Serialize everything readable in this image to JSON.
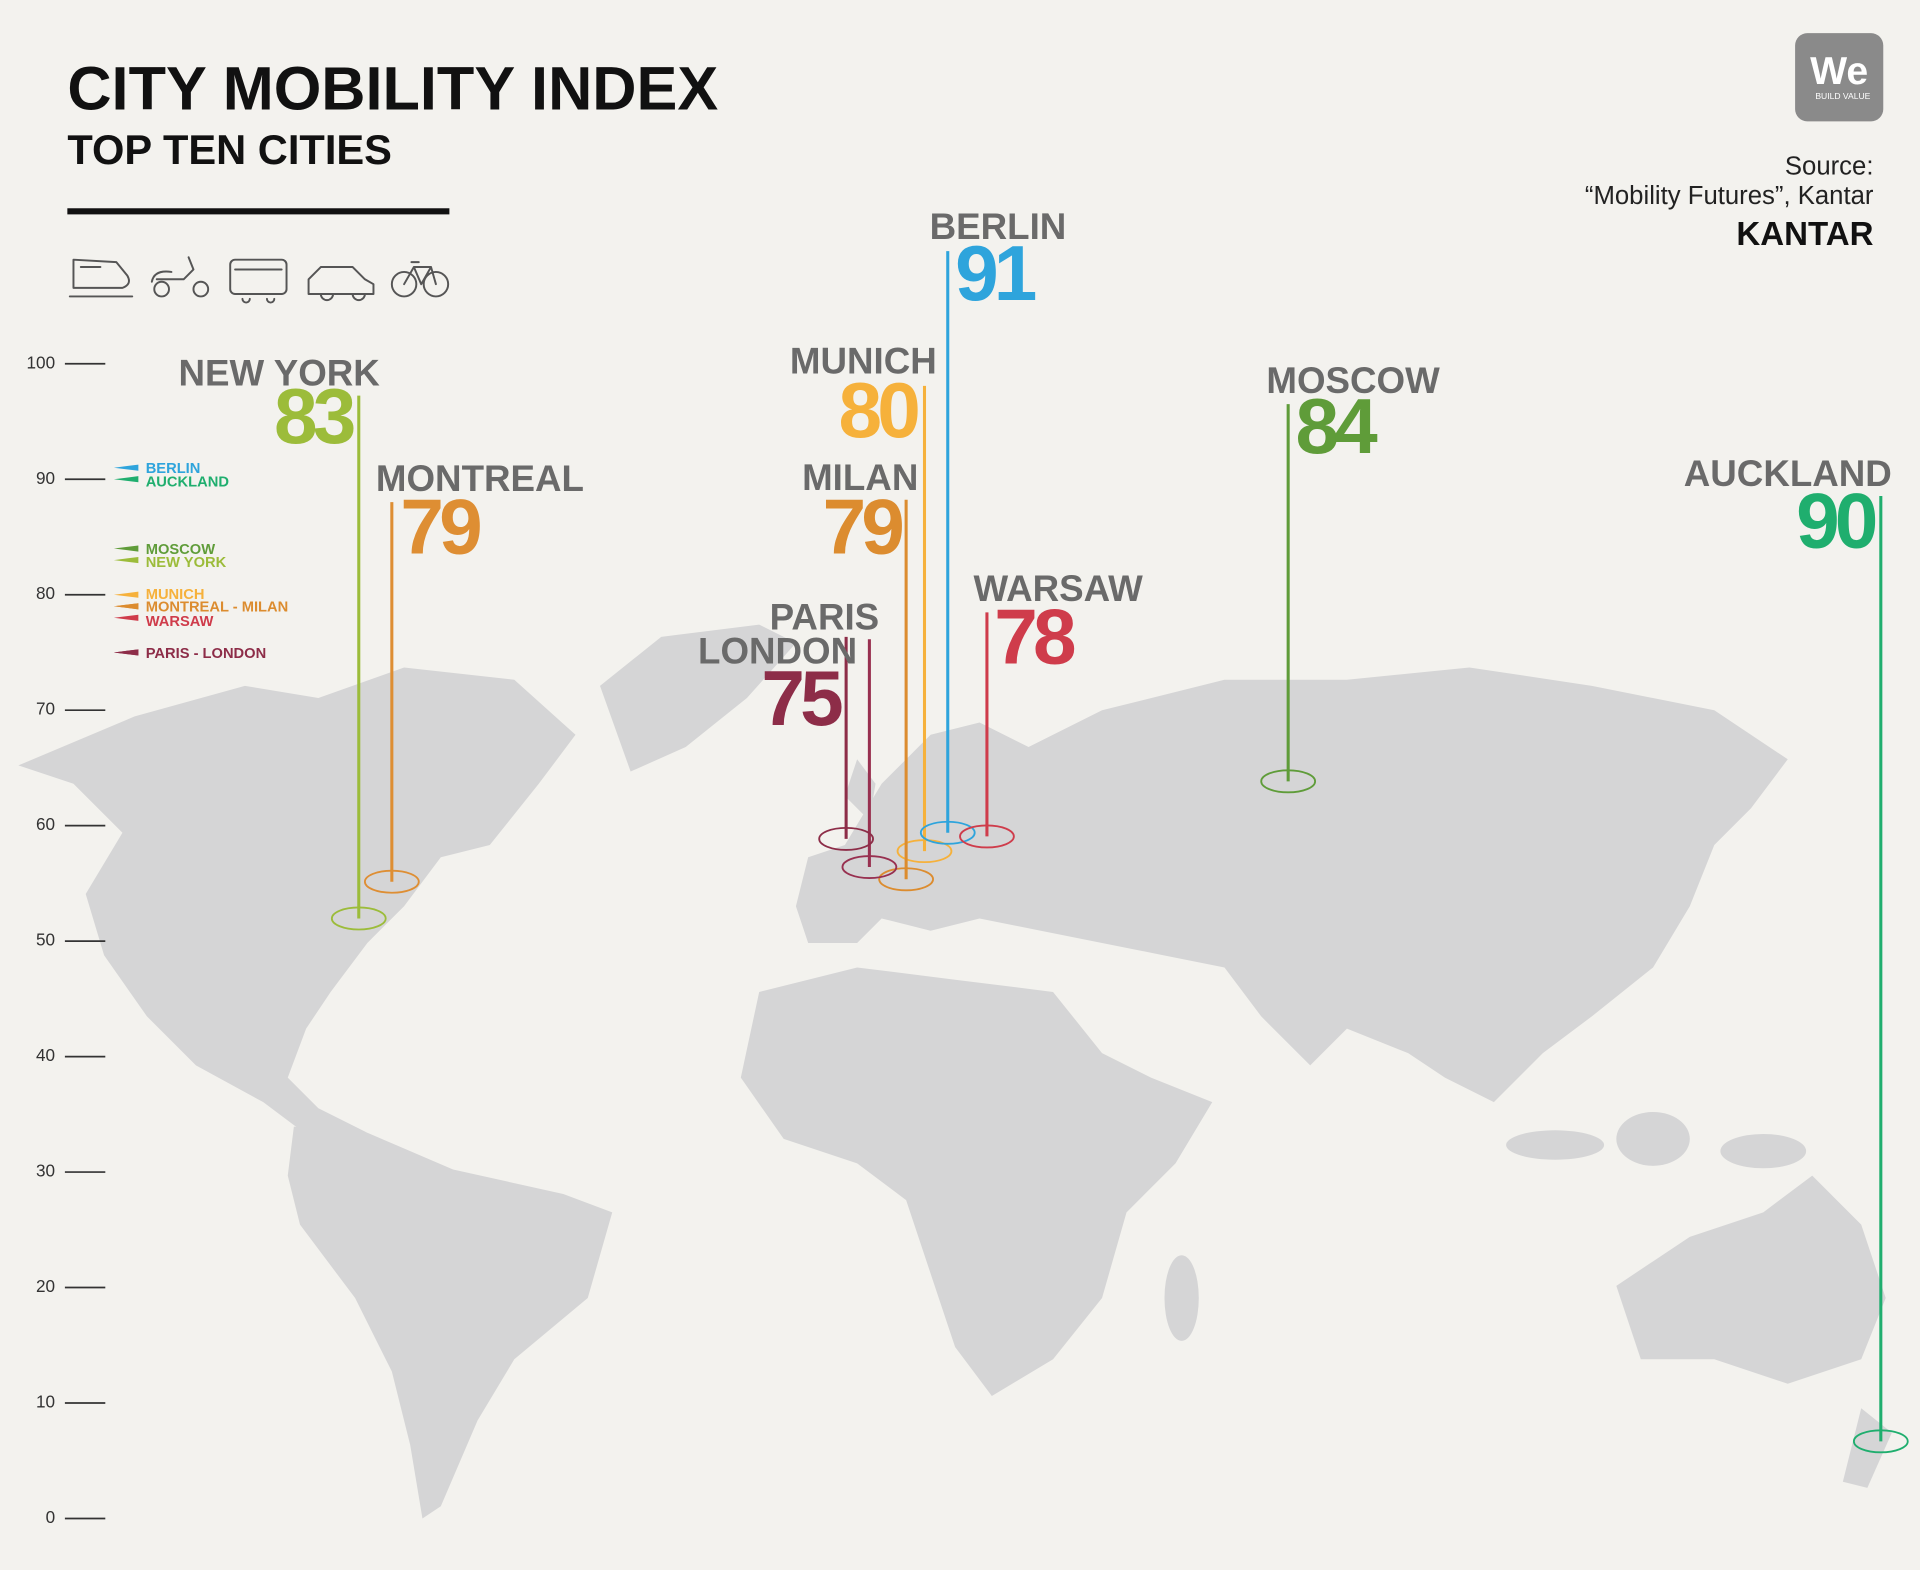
{
  "chart_data": {
    "type": "pin",
    "title": "CITY MOBILITY INDEX",
    "subtitle": "TOP TEN CITIES",
    "source_label": "Source:",
    "source": "“Mobility Futures”, Kantar",
    "brand": "KANTAR",
    "logo": "We",
    "logo_tagline": "BUILD VALUE",
    "ylim": [
      0,
      100
    ],
    "yticks": [
      0,
      10,
      20,
      30,
      40,
      50,
      60,
      70,
      80,
      90,
      100
    ],
    "axis_labels": [
      "BERLIN",
      "AUCKLAND",
      "MOSCOW",
      "NEW YORK",
      "MUNICH",
      "MONTREAL - MILAN",
      "WARSAW",
      "PARIS - LONDON"
    ],
    "cities": [
      {
        "name": "NEW YORK",
        "value": 83,
        "color": "#9cbc3a"
      },
      {
        "name": "MONTREAL",
        "value": 79,
        "color": "#de8e33"
      },
      {
        "name": "MUNICH",
        "value": 80,
        "color": "#f6b13b"
      },
      {
        "name": "MILAN",
        "value": 79,
        "color": "#dc8c2f"
      },
      {
        "name": "PARIS",
        "value": 75,
        "color": "#983050"
      },
      {
        "name": "LONDON",
        "value": 75,
        "color": "#8d2d48"
      },
      {
        "name": "BERLIN",
        "value": 91,
        "color": "#2ea4dc"
      },
      {
        "name": "WARSAW",
        "value": 78,
        "color": "#cf3c4b"
      },
      {
        "name": "MOSCOW",
        "value": 84,
        "color": "#5f9c39"
      },
      {
        "name": "AUCKLAND",
        "value": 90,
        "color": "#1fae6e"
      }
    ]
  }
}
